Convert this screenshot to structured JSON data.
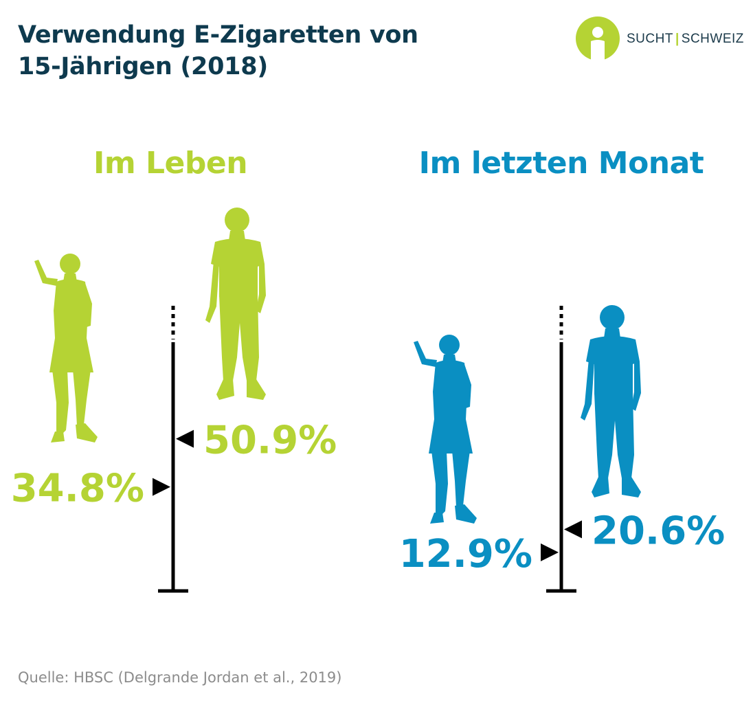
{
  "header": {
    "title_line1": "Verwendung E-Zigaretten von",
    "title_line2": "15-Jährigen (2018)"
  },
  "logo": {
    "word1": "SUCHT",
    "separator": "|",
    "word2": "SCHWEIZ",
    "icon": "person-in-circle-icon"
  },
  "colors": {
    "green": "#b5d334",
    "blue": "#0a8fc2",
    "dark": "#0e3a4e",
    "black": "#000000",
    "source_gray": "#8c8c8c"
  },
  "chart_data": [
    {
      "type": "pictogram-scale",
      "title": "Im Leben",
      "color": "#b5d334",
      "series": [
        {
          "value": 34.8,
          "label": "34.8%",
          "figure": "girl-icon"
        },
        {
          "value": 50.9,
          "label": "50.9%",
          "figure": "boy-icon"
        }
      ]
    },
    {
      "type": "pictogram-scale",
      "title": "Im letzten Monat",
      "color": "#0a8fc2",
      "series": [
        {
          "value": 12.9,
          "label": "12.9%",
          "figure": "girl-icon"
        },
        {
          "value": 20.6,
          "label": "20.6%",
          "figure": "boy-icon"
        }
      ]
    }
  ],
  "footer": {
    "source": "Quelle: HBSC (Delgrande Jordan et al., 2019)"
  }
}
